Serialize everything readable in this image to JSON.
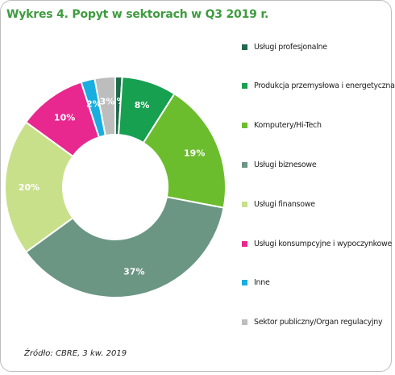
{
  "title": "Wykres 4. Popyt w sektorach w Q3 2019 r.",
  "source": "Źródło: CBRE, 3 kw. 2019",
  "chart_data": {
    "type": "pie",
    "donut": true,
    "legend_placement": "right",
    "categories": [
      "Usługi profesjonalne",
      "Produkcja przemysłowa i energetyczna",
      "Komputery/Hi-Tech",
      "Usługi biznesowe",
      "Usługi finansowe",
      "Usługi konsumpcyjne i wypoczynkowe",
      "Inne",
      "Sektor publiczny/Organ regulacyjny"
    ],
    "values": [
      1,
      8,
      19,
      37,
      20,
      10,
      2,
      3
    ],
    "labels": [
      "1%",
      "8%",
      "19%",
      "37%",
      "20%",
      "10%",
      "2%",
      "3%"
    ],
    "colors": [
      "#1f6a4a",
      "#16a050",
      "#6cbd2e",
      "#6b9684",
      "#c8e08a",
      "#e8288f",
      "#19aee0",
      "#bdbdbd"
    ]
  }
}
